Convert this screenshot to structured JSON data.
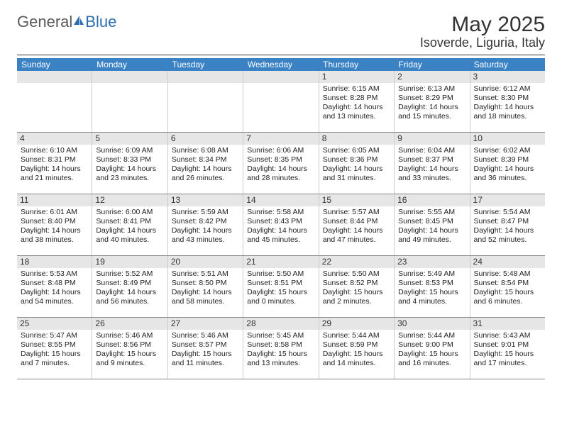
{
  "logo": {
    "text1": "General",
    "text2": "Blue"
  },
  "title": "May 2025",
  "location": "Isoverde, Liguria, Italy",
  "weekdays": [
    "Sunday",
    "Monday",
    "Tuesday",
    "Wednesday",
    "Thursday",
    "Friday",
    "Saturday"
  ],
  "colors": {
    "header_bg": "#3a82c4",
    "daynum_bg": "#e6e6e6"
  },
  "weeks": [
    [
      null,
      null,
      null,
      null,
      {
        "n": "1",
        "sr": "6:15 AM",
        "ss": "8:28 PM",
        "dh": "14",
        "dm": "13"
      },
      {
        "n": "2",
        "sr": "6:13 AM",
        "ss": "8:29 PM",
        "dh": "14",
        "dm": "15"
      },
      {
        "n": "3",
        "sr": "6:12 AM",
        "ss": "8:30 PM",
        "dh": "14",
        "dm": "18"
      }
    ],
    [
      {
        "n": "4",
        "sr": "6:10 AM",
        "ss": "8:31 PM",
        "dh": "14",
        "dm": "21"
      },
      {
        "n": "5",
        "sr": "6:09 AM",
        "ss": "8:33 PM",
        "dh": "14",
        "dm": "23"
      },
      {
        "n": "6",
        "sr": "6:08 AM",
        "ss": "8:34 PM",
        "dh": "14",
        "dm": "26"
      },
      {
        "n": "7",
        "sr": "6:06 AM",
        "ss": "8:35 PM",
        "dh": "14",
        "dm": "28"
      },
      {
        "n": "8",
        "sr": "6:05 AM",
        "ss": "8:36 PM",
        "dh": "14",
        "dm": "31"
      },
      {
        "n": "9",
        "sr": "6:04 AM",
        "ss": "8:37 PM",
        "dh": "14",
        "dm": "33"
      },
      {
        "n": "10",
        "sr": "6:02 AM",
        "ss": "8:39 PM",
        "dh": "14",
        "dm": "36"
      }
    ],
    [
      {
        "n": "11",
        "sr": "6:01 AM",
        "ss": "8:40 PM",
        "dh": "14",
        "dm": "38"
      },
      {
        "n": "12",
        "sr": "6:00 AM",
        "ss": "8:41 PM",
        "dh": "14",
        "dm": "40"
      },
      {
        "n": "13",
        "sr": "5:59 AM",
        "ss": "8:42 PM",
        "dh": "14",
        "dm": "43"
      },
      {
        "n": "14",
        "sr": "5:58 AM",
        "ss": "8:43 PM",
        "dh": "14",
        "dm": "45"
      },
      {
        "n": "15",
        "sr": "5:57 AM",
        "ss": "8:44 PM",
        "dh": "14",
        "dm": "47"
      },
      {
        "n": "16",
        "sr": "5:55 AM",
        "ss": "8:45 PM",
        "dh": "14",
        "dm": "49"
      },
      {
        "n": "17",
        "sr": "5:54 AM",
        "ss": "8:47 PM",
        "dh": "14",
        "dm": "52"
      }
    ],
    [
      {
        "n": "18",
        "sr": "5:53 AM",
        "ss": "8:48 PM",
        "dh": "14",
        "dm": "54"
      },
      {
        "n": "19",
        "sr": "5:52 AM",
        "ss": "8:49 PM",
        "dh": "14",
        "dm": "56"
      },
      {
        "n": "20",
        "sr": "5:51 AM",
        "ss": "8:50 PM",
        "dh": "14",
        "dm": "58"
      },
      {
        "n": "21",
        "sr": "5:50 AM",
        "ss": "8:51 PM",
        "dh": "15",
        "dm": "0"
      },
      {
        "n": "22",
        "sr": "5:50 AM",
        "ss": "8:52 PM",
        "dh": "15",
        "dm": "2"
      },
      {
        "n": "23",
        "sr": "5:49 AM",
        "ss": "8:53 PM",
        "dh": "15",
        "dm": "4"
      },
      {
        "n": "24",
        "sr": "5:48 AM",
        "ss": "8:54 PM",
        "dh": "15",
        "dm": "6"
      }
    ],
    [
      {
        "n": "25",
        "sr": "5:47 AM",
        "ss": "8:55 PM",
        "dh": "15",
        "dm": "7"
      },
      {
        "n": "26",
        "sr": "5:46 AM",
        "ss": "8:56 PM",
        "dh": "15",
        "dm": "9"
      },
      {
        "n": "27",
        "sr": "5:46 AM",
        "ss": "8:57 PM",
        "dh": "15",
        "dm": "11"
      },
      {
        "n": "28",
        "sr": "5:45 AM",
        "ss": "8:58 PM",
        "dh": "15",
        "dm": "13"
      },
      {
        "n": "29",
        "sr": "5:44 AM",
        "ss": "8:59 PM",
        "dh": "15",
        "dm": "14"
      },
      {
        "n": "30",
        "sr": "5:44 AM",
        "ss": "9:00 PM",
        "dh": "15",
        "dm": "16"
      },
      {
        "n": "31",
        "sr": "5:43 AM",
        "ss": "9:01 PM",
        "dh": "15",
        "dm": "17"
      }
    ]
  ]
}
